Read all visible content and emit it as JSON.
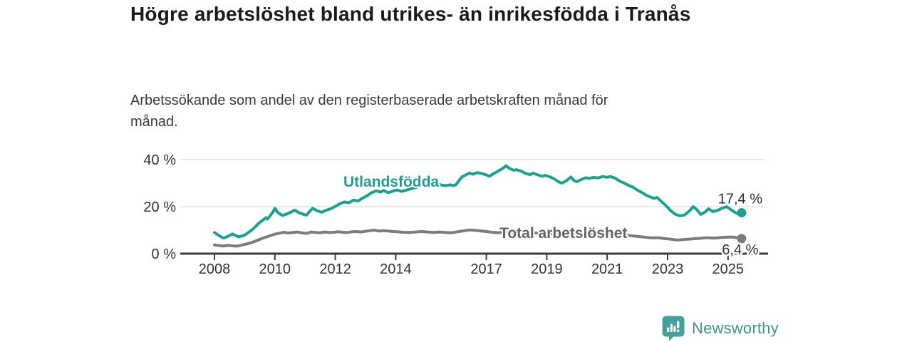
{
  "colors": {
    "background": "#ffffff",
    "title_text": "#1a1a1a",
    "subtitle_text": "#3a3a3a",
    "axis": "#3b3b3f",
    "gridline": "#dcdcdc",
    "tick_text": "#333333",
    "end_label_text": "#2e2e33",
    "series_foreign_born": "#17a292",
    "series_total": "#7c7c80",
    "series_total_label": "#646468",
    "brand_teal": "#44a198",
    "brand_text_teal": "#3d978f"
  },
  "branding": {
    "logo_text": "Newsworthy",
    "logo_icon": "bar-chart-speech-bubble-icon"
  },
  "chart_data": {
    "type": "line",
    "title": "Högre arbetslöshet bland utrikes- än inrikesfödda i Tranås",
    "subtitle": "Arbetssökande som andel av den registerbaserade arbetskraften månad för månad.",
    "xlabel": "",
    "ylabel": "",
    "xlim": [
      2006.9,
      2026.35
    ],
    "ylim": [
      0,
      44
    ],
    "grid": "horizontal",
    "legend_position": "inline-labels",
    "x_ticks": [
      2008,
      2010,
      2012,
      2014,
      2017,
      2019,
      2021,
      2023,
      2025
    ],
    "y_ticks": [
      {
        "value": 0,
        "label": "0 %"
      },
      {
        "value": 20,
        "label": "20 %"
      },
      {
        "value": 40,
        "label": "40 %"
      }
    ],
    "series": [
      {
        "id": "total-arbetsloshet",
        "name": "Total arbetslöshet",
        "color": "#7c7c80",
        "label_color": "#646468",
        "end_value": 6.4,
        "end_value_label": "6,4 %",
        "end_label_side": "below",
        "label_anchor": {
          "x": 2019.55,
          "y": 8.8
        },
        "points": [
          [
            2008.0,
            3.7
          ],
          [
            2008.15,
            3.4
          ],
          [
            2008.3,
            3.2
          ],
          [
            2008.45,
            3.5
          ],
          [
            2008.6,
            3.3
          ],
          [
            2008.75,
            3.2
          ],
          [
            2008.9,
            3.6
          ],
          [
            2009.0,
            3.9
          ],
          [
            2009.15,
            4.4
          ],
          [
            2009.3,
            5.1
          ],
          [
            2009.45,
            5.8
          ],
          [
            2009.6,
            6.6
          ],
          [
            2009.75,
            7.2
          ],
          [
            2009.9,
            7.9
          ],
          [
            2010.0,
            8.3
          ],
          [
            2010.15,
            8.7
          ],
          [
            2010.3,
            9.1
          ],
          [
            2010.45,
            8.8
          ],
          [
            2010.6,
            9.0
          ],
          [
            2010.75,
            9.2
          ],
          [
            2010.9,
            8.8
          ],
          [
            2011.05,
            8.6
          ],
          [
            2011.2,
            9.2
          ],
          [
            2011.35,
            9.0
          ],
          [
            2011.5,
            8.9
          ],
          [
            2011.65,
            9.2
          ],
          [
            2011.8,
            9.0
          ],
          [
            2011.95,
            9.1
          ],
          [
            2012.1,
            9.3
          ],
          [
            2012.25,
            9.1
          ],
          [
            2012.4,
            9.0
          ],
          [
            2012.55,
            9.3
          ],
          [
            2012.7,
            9.4
          ],
          [
            2012.85,
            9.2
          ],
          [
            2013.0,
            9.5
          ],
          [
            2013.15,
            9.8
          ],
          [
            2013.3,
            10.0
          ],
          [
            2013.45,
            9.6
          ],
          [
            2013.6,
            9.8
          ],
          [
            2013.75,
            9.6
          ],
          [
            2013.9,
            9.4
          ],
          [
            2014.05,
            9.3
          ],
          [
            2014.25,
            9.1
          ],
          [
            2014.45,
            9.0
          ],
          [
            2014.65,
            9.2
          ],
          [
            2014.85,
            9.4
          ],
          [
            2015.05,
            9.2
          ],
          [
            2015.25,
            9.0
          ],
          [
            2015.45,
            9.2
          ],
          [
            2015.65,
            9.0
          ],
          [
            2015.85,
            8.9
          ],
          [
            2016.05,
            9.3
          ],
          [
            2016.25,
            9.7
          ],
          [
            2016.45,
            10.1
          ],
          [
            2016.6,
            9.9
          ],
          [
            2016.8,
            9.7
          ],
          [
            2017.0,
            9.4
          ],
          [
            2017.2,
            9.1
          ],
          [
            2017.4,
            8.9
          ],
          [
            2017.6,
            9.1
          ],
          [
            2017.8,
            9.0
          ],
          [
            2018.0,
            8.9
          ],
          [
            2018.2,
            9.1
          ],
          [
            2018.4,
            9.0
          ],
          [
            2018.6,
            8.8
          ],
          [
            2018.8,
            8.7
          ],
          [
            2019.0,
            8.6
          ],
          [
            2019.2,
            8.4
          ],
          [
            2019.4,
            8.3
          ],
          [
            2019.6,
            8.2
          ],
          [
            2019.8,
            8.3
          ],
          [
            2020.0,
            8.4
          ],
          [
            2020.2,
            8.6
          ],
          [
            2020.4,
            8.5
          ],
          [
            2020.6,
            8.4
          ],
          [
            2020.8,
            8.3
          ],
          [
            2021.0,
            8.2
          ],
          [
            2021.2,
            8.1
          ],
          [
            2021.4,
            8.0
          ],
          [
            2021.6,
            7.8
          ],
          [
            2021.8,
            7.6
          ],
          [
            2021.95,
            7.4
          ],
          [
            2022.1,
            7.2
          ],
          [
            2022.25,
            7.0
          ],
          [
            2022.4,
            6.8
          ],
          [
            2022.55,
            6.7
          ],
          [
            2022.7,
            6.8
          ],
          [
            2022.85,
            6.5
          ],
          [
            2023.0,
            6.3
          ],
          [
            2023.15,
            6.1
          ],
          [
            2023.3,
            5.8
          ],
          [
            2023.45,
            5.9
          ],
          [
            2023.6,
            6.1
          ],
          [
            2023.75,
            6.2
          ],
          [
            2023.9,
            6.4
          ],
          [
            2024.05,
            6.5
          ],
          [
            2024.2,
            6.7
          ],
          [
            2024.35,
            6.8
          ],
          [
            2024.5,
            6.6
          ],
          [
            2024.65,
            6.7
          ],
          [
            2024.8,
            6.9
          ],
          [
            2024.95,
            7.0
          ],
          [
            2025.1,
            7.1
          ],
          [
            2025.25,
            6.9
          ],
          [
            2025.35,
            6.6
          ],
          [
            2025.45,
            6.4
          ]
        ]
      },
      {
        "id": "utlandsfodda",
        "name": "Utlandsfödda",
        "color": "#17a292",
        "label_color": "#17a292",
        "end_value": 17.4,
        "end_value_label": "17,4 %",
        "end_label_side": "above",
        "label_anchor": {
          "x": 2013.85,
          "y": 30.6
        },
        "points": [
          [
            2008.0,
            9.0
          ],
          [
            2008.1,
            8.1
          ],
          [
            2008.2,
            7.3
          ],
          [
            2008.3,
            6.6
          ],
          [
            2008.45,
            7.4
          ],
          [
            2008.6,
            8.4
          ],
          [
            2008.7,
            7.7
          ],
          [
            2008.8,
            7.1
          ],
          [
            2008.9,
            7.5
          ],
          [
            2009.0,
            7.9
          ],
          [
            2009.1,
            8.8
          ],
          [
            2009.2,
            9.7
          ],
          [
            2009.3,
            10.8
          ],
          [
            2009.4,
            12.1
          ],
          [
            2009.5,
            13.3
          ],
          [
            2009.6,
            14.2
          ],
          [
            2009.7,
            15.3
          ],
          [
            2009.75,
            14.7
          ],
          [
            2009.85,
            16.2
          ],
          [
            2009.95,
            18.0
          ],
          [
            2010.0,
            19.3
          ],
          [
            2010.1,
            17.5
          ],
          [
            2010.25,
            16.2
          ],
          [
            2010.4,
            16.9
          ],
          [
            2010.55,
            17.8
          ],
          [
            2010.65,
            18.5
          ],
          [
            2010.8,
            17.4
          ],
          [
            2010.95,
            16.7
          ],
          [
            2011.05,
            16.4
          ],
          [
            2011.15,
            18.0
          ],
          [
            2011.25,
            19.3
          ],
          [
            2011.4,
            18.2
          ],
          [
            2011.55,
            17.6
          ],
          [
            2011.7,
            18.5
          ],
          [
            2011.85,
            19.1
          ],
          [
            2012.0,
            20.1
          ],
          [
            2012.15,
            21.2
          ],
          [
            2012.3,
            22.0
          ],
          [
            2012.45,
            21.6
          ],
          [
            2012.6,
            22.8
          ],
          [
            2012.75,
            22.4
          ],
          [
            2012.9,
            23.6
          ],
          [
            2013.05,
            24.6
          ],
          [
            2013.2,
            25.9
          ],
          [
            2013.35,
            26.7
          ],
          [
            2013.5,
            26.2
          ],
          [
            2013.6,
            26.9
          ],
          [
            2013.75,
            25.9
          ],
          [
            2013.9,
            26.6
          ],
          [
            2014.05,
            27.1
          ],
          [
            2014.2,
            26.5
          ],
          [
            2014.35,
            27.0
          ],
          [
            2014.5,
            27.6
          ],
          [
            2014.65,
            28.1
          ],
          [
            2014.8,
            28.7
          ],
          [
            2014.95,
            30.2
          ],
          [
            2015.1,
            30.7
          ],
          [
            2015.2,
            30.1
          ],
          [
            2015.35,
            29.7
          ],
          [
            2015.5,
            29.2
          ],
          [
            2015.65,
            28.9
          ],
          [
            2015.8,
            29.3
          ],
          [
            2015.9,
            28.9
          ],
          [
            2016.0,
            29.4
          ],
          [
            2016.1,
            31.2
          ],
          [
            2016.2,
            32.7
          ],
          [
            2016.35,
            33.7
          ],
          [
            2016.45,
            34.3
          ],
          [
            2016.55,
            33.8
          ],
          [
            2016.7,
            34.5
          ],
          [
            2016.85,
            34.1
          ],
          [
            2017.0,
            33.5
          ],
          [
            2017.1,
            32.9
          ],
          [
            2017.25,
            34.1
          ],
          [
            2017.4,
            35.2
          ],
          [
            2017.55,
            36.3
          ],
          [
            2017.65,
            37.4
          ],
          [
            2017.75,
            36.4
          ],
          [
            2017.9,
            35.5
          ],
          [
            2018.0,
            35.7
          ],
          [
            2018.15,
            35.1
          ],
          [
            2018.3,
            34.1
          ],
          [
            2018.45,
            33.6
          ],
          [
            2018.55,
            34.2
          ],
          [
            2018.7,
            33.5
          ],
          [
            2018.85,
            32.9
          ],
          [
            2018.95,
            33.3
          ],
          [
            2019.1,
            32.7
          ],
          [
            2019.25,
            31.8
          ],
          [
            2019.4,
            30.5
          ],
          [
            2019.5,
            30.0
          ],
          [
            2019.65,
            31.0
          ],
          [
            2019.8,
            32.6
          ],
          [
            2019.9,
            31.1
          ],
          [
            2020.0,
            30.6
          ],
          [
            2020.15,
            31.6
          ],
          [
            2020.3,
            32.3
          ],
          [
            2020.4,
            32.0
          ],
          [
            2020.55,
            32.5
          ],
          [
            2020.7,
            32.2
          ],
          [
            2020.85,
            32.8
          ],
          [
            2021.0,
            32.5
          ],
          [
            2021.1,
            32.8
          ],
          [
            2021.25,
            32.2
          ],
          [
            2021.4,
            30.9
          ],
          [
            2021.55,
            30.1
          ],
          [
            2021.7,
            29.1
          ],
          [
            2021.85,
            28.3
          ],
          [
            2022.0,
            27.0
          ],
          [
            2022.15,
            26.0
          ],
          [
            2022.3,
            24.8
          ],
          [
            2022.45,
            24.0
          ],
          [
            2022.55,
            23.5
          ],
          [
            2022.65,
            23.9
          ],
          [
            2022.8,
            22.1
          ],
          [
            2022.95,
            20.4
          ],
          [
            2023.1,
            18.3
          ],
          [
            2023.25,
            16.8
          ],
          [
            2023.4,
            16.1
          ],
          [
            2023.55,
            16.4
          ],
          [
            2023.7,
            17.9
          ],
          [
            2023.85,
            20.0
          ],
          [
            2023.95,
            18.9
          ],
          [
            2024.1,
            16.7
          ],
          [
            2024.25,
            17.8
          ],
          [
            2024.35,
            19.1
          ],
          [
            2024.5,
            17.9
          ],
          [
            2024.65,
            18.4
          ],
          [
            2024.8,
            19.3
          ],
          [
            2024.95,
            20.0
          ],
          [
            2025.1,
            18.7
          ],
          [
            2025.25,
            17.4
          ],
          [
            2025.35,
            16.9
          ],
          [
            2025.45,
            17.4
          ]
        ]
      }
    ]
  }
}
